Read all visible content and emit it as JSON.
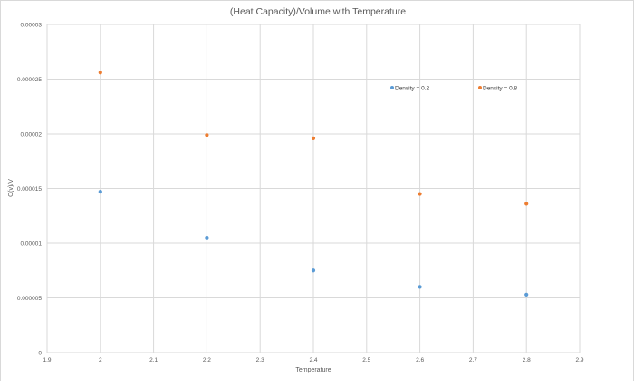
{
  "chart_data": {
    "type": "scatter",
    "title": "(Heat Capacity)/Volume with Temperature",
    "xlabel": "Temperature",
    "ylabel": "C(v)/V",
    "xlim": [
      1.9,
      2.9
    ],
    "ylim": [
      0,
      3e-05
    ],
    "xticks": [
      "1.9",
      "2",
      "2.1",
      "2.2",
      "2.3",
      "2.4",
      "2.5",
      "2.6",
      "2.7",
      "2.8",
      "2.9"
    ],
    "xtick_values": [
      1.9,
      2.0,
      2.1,
      2.2,
      2.3,
      2.4,
      2.5,
      2.6,
      2.7,
      2.8,
      2.9
    ],
    "yticks": [
      "0",
      "0.000005",
      "0.00001",
      "0.000015",
      "0.00002",
      "0.000025",
      "0.00003"
    ],
    "ytick_values": [
      0,
      5e-06,
      1e-05,
      1.5e-05,
      2e-05,
      2.5e-05,
      3e-05
    ],
    "grid": true,
    "legend_position": "top-right",
    "series": [
      {
        "name": "Density = 0.2",
        "color": "#5b9bd5",
        "x": [
          2.0,
          2.2,
          2.4,
          2.6,
          2.8
        ],
        "y": [
          1.47e-05,
          1.05e-05,
          7.5e-06,
          6e-06,
          5.3e-06
        ]
      },
      {
        "name": "Density = 0.8",
        "color": "#ed7d31",
        "x": [
          2.0,
          2.2,
          2.4,
          2.6,
          2.8
        ],
        "y": [
          2.56e-05,
          1.99e-05,
          1.96e-05,
          1.45e-05,
          1.36e-05
        ]
      }
    ]
  }
}
